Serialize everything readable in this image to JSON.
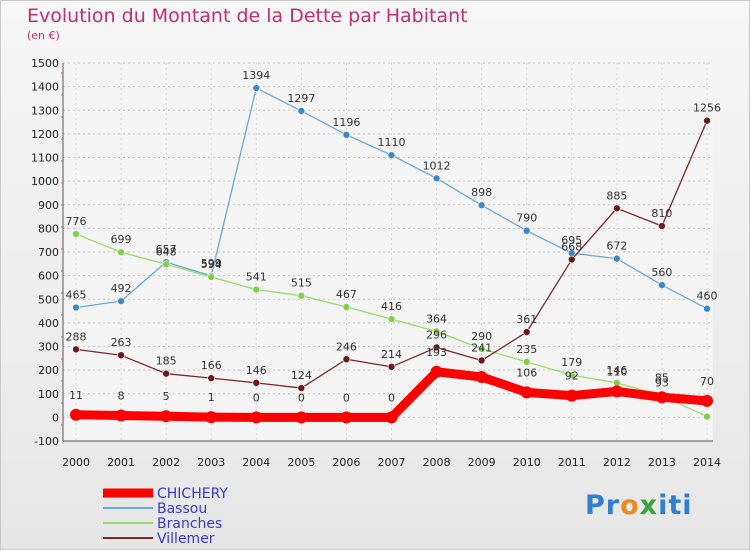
{
  "title": "Evolution du Montant de la Dette par Habitant",
  "unit": "(en €)",
  "logo": {
    "text": [
      "Pr",
      "o",
      "x",
      "iti"
    ]
  },
  "chart_data": {
    "type": "line",
    "x": [
      "2000",
      "2001",
      "2002",
      "2003",
      "2004",
      "2005",
      "2006",
      "2007",
      "2008",
      "2009",
      "2010",
      "2011",
      "2012",
      "2013",
      "2014"
    ],
    "ylim": [
      -100,
      1500
    ],
    "yticks": [
      -100,
      0,
      100,
      200,
      300,
      400,
      500,
      600,
      700,
      800,
      900,
      1000,
      1100,
      1200,
      1300,
      1400,
      1500
    ],
    "grid": "horizontal-dashed",
    "legend": "bottom-left",
    "series": [
      {
        "name": "CHICHERY",
        "color": "#ff0000",
        "marker": "#ff0000",
        "width": 9,
        "values": [
          11,
          8,
          5,
          1,
          0,
          0,
          0,
          0,
          193,
          171,
          106,
          92,
          110,
          85,
          70
        ],
        "labels": [
          "11",
          "8",
          "5",
          "1",
          "0",
          "0",
          "0",
          "0",
          "193",
          "",
          "106",
          "92",
          "110",
          "85",
          "70"
        ]
      },
      {
        "name": "Bassou",
        "color": "#6aaad8",
        "marker": "#3f86c8",
        "width": 1.3,
        "values": [
          465,
          492,
          657,
          599,
          1394,
          1297,
          1196,
          1110,
          1012,
          898,
          790,
          695,
          672,
          560,
          460
        ],
        "labels": [
          "465",
          "492",
          "657",
          "599",
          "1394",
          "1297",
          "1196",
          "1110",
          "1012",
          "898",
          "790",
          "695",
          "672",
          "560",
          "460"
        ]
      },
      {
        "name": "Branches",
        "color": "#98dc6c",
        "marker": "#7fcf4c",
        "width": 1.3,
        "values": [
          776,
          699,
          648,
          594,
          541,
          515,
          467,
          416,
          364,
          290,
          235,
          179,
          146,
          93,
          3
        ],
        "labels": [
          "776",
          "699",
          "648",
          "594",
          "541",
          "515",
          "467",
          "416",
          "364",
          "290",
          "235",
          "179",
          "146",
          "93",
          ""
        ]
      },
      {
        "name": "Villemer",
        "color": "#7a2828",
        "marker": "#6a1818",
        "width": 1.3,
        "values": [
          288,
          263,
          185,
          166,
          146,
          124,
          246,
          214,
          296,
          241,
          361,
          668,
          885,
          810,
          1256
        ],
        "labels": [
          "288",
          "263",
          "185",
          "166",
          "146",
          "124",
          "246",
          "214",
          "296",
          "241",
          "361",
          "668",
          "885",
          "810",
          "1256"
        ]
      }
    ]
  }
}
